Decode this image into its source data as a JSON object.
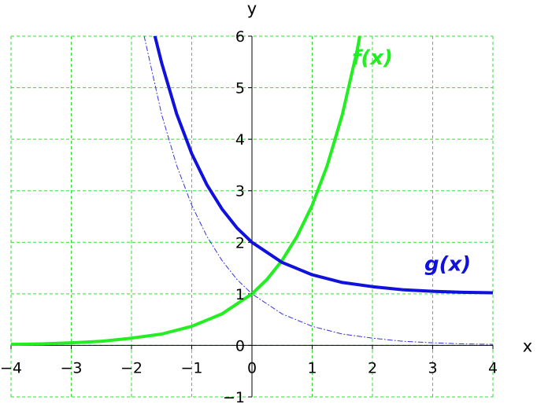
{
  "chart_data": {
    "type": "line",
    "title": "",
    "xlabel": "x",
    "ylabel": "y",
    "xlim": [
      -4,
      4
    ],
    "ylim": [
      -1,
      6
    ],
    "x_ticks": [
      -4,
      -3,
      -2,
      -1,
      0,
      1,
      2,
      3,
      4
    ],
    "x_tick_labels": [
      "−4",
      "−3",
      "−2",
      "−1",
      "0",
      "1",
      "2",
      "3",
      "4"
    ],
    "y_ticks": [
      -1,
      0,
      1,
      2,
      3,
      4,
      5,
      6
    ],
    "y_tick_labels": [
      "−1",
      "0",
      "1",
      "2",
      "3",
      "4",
      "5",
      "6"
    ],
    "grid": true,
    "grid_color": "#33dd33",
    "series": [
      {
        "name": "f(x)",
        "color": "#22ee22",
        "style": "solid-thick",
        "x": [
          -4,
          -3.5,
          -3,
          -2.5,
          -2,
          -1.5,
          -1,
          -0.5,
          0,
          0.25,
          0.5,
          0.75,
          1,
          1.25,
          1.5,
          1.75,
          1.79
        ],
        "y": [
          0.02,
          0.03,
          0.05,
          0.08,
          0.14,
          0.22,
          0.37,
          0.61,
          1.0,
          1.28,
          1.65,
          2.12,
          2.72,
          3.49,
          4.48,
          5.75,
          6.0
        ]
      },
      {
        "name": "g(x)",
        "color": "#1111dd",
        "style": "solid-thick",
        "x": [
          -1.61,
          -1.5,
          -1.25,
          -1,
          -0.75,
          -0.5,
          -0.25,
          0,
          0.5,
          1,
          1.5,
          2,
          2.5,
          3,
          3.5,
          4
        ],
        "y": [
          6.0,
          5.48,
          4.49,
          3.72,
          3.12,
          2.65,
          2.28,
          2.0,
          1.61,
          1.37,
          1.22,
          1.14,
          1.08,
          1.05,
          1.03,
          1.02
        ]
      },
      {
        "color": "#3333dd",
        "style": "dash-dot-thin",
        "x": [
          -1.79,
          -1.5,
          -1.25,
          -1,
          -0.75,
          -0.5,
          -0.25,
          0,
          0.5,
          1,
          1.5,
          2,
          2.5,
          3,
          3.5,
          4
        ],
        "y": [
          6.0,
          4.48,
          3.49,
          2.72,
          2.12,
          1.65,
          1.28,
          1.0,
          0.61,
          0.37,
          0.22,
          0.14,
          0.08,
          0.05,
          0.03,
          0.02
        ]
      }
    ],
    "annotations": [
      {
        "text": "f(x)",
        "x": 2.0,
        "y": 5.45,
        "color": "#22ee22"
      },
      {
        "text": "g(x)",
        "x": 3.25,
        "y": 1.45,
        "color": "#1111dd"
      }
    ]
  }
}
